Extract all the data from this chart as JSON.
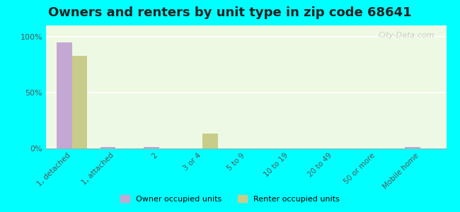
{
  "title": "Owners and renters by unit type in zip code 68641",
  "categories": [
    "1, detached",
    "1, attached",
    "2",
    "3 or 4",
    "5 to 9",
    "10 to 19",
    "20 to 49",
    "50 or more",
    "Mobile home"
  ],
  "owner_values": [
    95,
    1.5,
    1.5,
    0,
    0,
    0,
    0,
    0,
    1.5
  ],
  "renter_values": [
    83,
    0,
    0,
    13,
    0,
    0,
    0,
    0,
    0
  ],
  "owner_color": "#c4a8d4",
  "renter_color": "#c8cc8a",
  "bg_color_top": "#e8f5e9",
  "bg_color_bottom": "#f5ffe8",
  "outer_bg": "#00ffff",
  "yticks": [
    0,
    50,
    100
  ],
  "ylabels": [
    "0%",
    "50%",
    "100%"
  ],
  "ylim": [
    0,
    110
  ],
  "bar_width": 0.35,
  "title_fontsize": 13,
  "watermark": "City-Data.com"
}
